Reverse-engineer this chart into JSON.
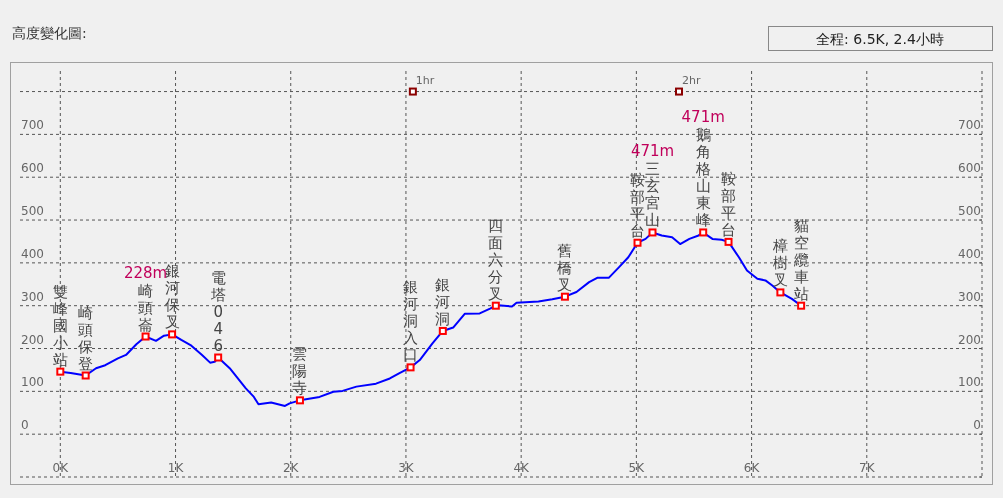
{
  "chart_data": {
    "type": "line",
    "title": "高度變化圖:",
    "subtitle": "全程: 6.5K, 2.4小時",
    "xlim": [
      -0.35,
      8
    ],
    "ylim": [
      -100,
      848
    ],
    "xticks": [
      {
        "value": 0,
        "label": "0K"
      },
      {
        "value": 1,
        "label": "1K"
      },
      {
        "value": 2,
        "label": "2K"
      },
      {
        "value": 3,
        "label": "3K"
      },
      {
        "value": 4,
        "label": "4K"
      },
      {
        "value": 5,
        "label": "5K"
      },
      {
        "value": 6,
        "label": "6K"
      },
      {
        "value": 7,
        "label": "7K"
      },
      {
        "value": 8,
        "label": null
      }
    ],
    "yticks": [
      {
        "value": -100,
        "label": null
      },
      0,
      100,
      200,
      300,
      400,
      500,
      600,
      700,
      {
        "value": 800,
        "label": null
      }
    ],
    "y2lim": [
      -100,
      848
    ],
    "y2ticks": [
      {
        "value": -100,
        "label": null
      },
      0,
      100,
      200,
      300,
      400,
      500,
      600,
      700,
      {
        "value": 800,
        "label": null
      }
    ],
    "grid": true,
    "line_style": "solid",
    "annotations": [
      "228m",
      "471m",
      "471m",
      {
        "text": "1hr",
        "x": 3.06,
        "y": 800
      },
      {
        "text": "2hr",
        "x": 5.37,
        "y": 800
      }
    ],
    "series": [
      {
        "color": "#0000ff",
        "x": [
          0.0,
          0.09,
          0.22,
          0.31,
          0.39,
          0.5,
          0.57,
          0.66,
          0.74,
          0.83,
          0.9,
          0.97,
          1.05,
          1.13,
          1.23,
          1.3,
          1.34,
          1.37,
          1.47,
          1.61,
          1.68,
          1.72,
          1.83,
          1.89,
          1.95,
          1.99,
          2.08,
          2.25,
          2.37,
          2.45,
          2.57,
          2.74,
          2.86,
          2.94,
          3.04,
          3.12,
          3.23,
          3.32,
          3.41,
          3.51,
          3.64,
          3.73,
          3.78,
          3.8,
          3.92,
          3.96,
          4.15,
          4.27,
          4.38,
          4.48,
          4.59,
          4.66,
          4.76,
          4.85,
          4.93,
          5.01,
          5.08,
          5.14,
          5.22,
          5.31,
          5.38,
          5.46,
          5.54,
          5.58,
          5.66,
          5.74,
          5.8,
          5.89,
          5.96,
          6.05,
          6.12,
          6.18,
          6.25,
          6.35,
          6.43
        ],
        "values": [
          146,
          143,
          137,
          154,
          161,
          177,
          185,
          210,
          228,
          218,
          230,
          233,
          220,
          208,
          185,
          167,
          169,
          179,
          154,
          107,
          87,
          70,
          74,
          70,
          66,
          72,
          79,
          87,
          99,
          101,
          111,
          118,
          130,
          142,
          156,
          173,
          212,
          241,
          249,
          281,
          282,
          293,
          300,
          301,
          298,
          307,
          310,
          315,
          321,
          332,
          355,
          365,
          365,
          390,
          413,
          447,
          456,
          471,
          464,
          460,
          444,
          456,
          464,
          471,
          456,
          454,
          449,
          413,
          382,
          363,
          359,
          347,
          331,
          316,
          300
        ]
      },
      {
        "type": "scatter",
        "color": "#ff0000",
        "marker": "square",
        "x": [
          0.0,
          0.22,
          0.74,
          0.97,
          1.37,
          2.08,
          3.04,
          3.32,
          3.78,
          4.38,
          5.01,
          5.14,
          5.58,
          5.8,
          6.25,
          6.43
        ],
        "values": [
          146,
          137,
          228,
          233,
          179,
          79,
          156,
          241,
          300,
          321,
          447,
          471,
          471,
          449,
          331,
          300
        ],
        "value_labels": [
          "雙峰國小站",
          "崎頭保登",
          "崎頭崙",
          "銀河保叉",
          "電塔046",
          "雲陽寺",
          "銀河洞入口",
          "銀河洞",
          "四面六分叉",
          "舊橋叉",
          "鞍部平台",
          "三玄宮山",
          "鵝角格山東峰",
          "鞍部平台",
          "樟樹叉",
          "貓空纜車站"
        ]
      },
      {
        "type": "scatter",
        "color": "#8b0000",
        "marker": "square",
        "x": [
          3.06,
          5.37
        ],
        "values": [
          800,
          800
        ]
      }
    ]
  }
}
